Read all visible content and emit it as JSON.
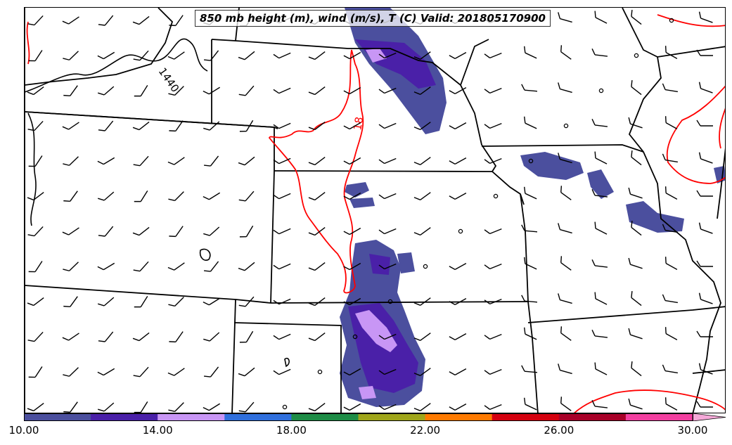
{
  "map": {
    "title": "850 mb height (m), wind (m/s), T (C) Valid: 201805170900",
    "contour_labels": {
      "height": "1440",
      "temperature": "18"
    }
  },
  "colorbar": {
    "colors": [
      "#4b4f9e",
      "#4a20a8",
      "#c896f5",
      "#2f6fdc",
      "#1e8c46",
      "#9fa51a",
      "#ff7a00",
      "#d4000f",
      "#a80028",
      "#f23fa0",
      "#f5a8d8"
    ],
    "tick_labels": [
      "10.00",
      "14.00",
      "18.00",
      "22.00",
      "26.00",
      "30.00"
    ]
  },
  "styles": {
    "state_line": "#000000",
    "temp_contour": "#ff0000",
    "height_contour": "#000000"
  }
}
